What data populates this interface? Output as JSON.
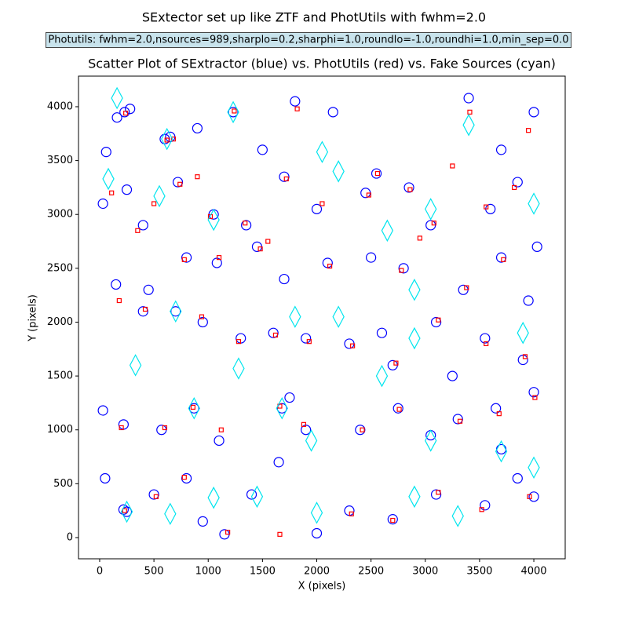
{
  "chart_data": {
    "type": "scatter",
    "title": "SExtector set up like ZTF and PhotUtils with fwhm=2.0",
    "annotation": "Photutils: fwhm=2.0,nsources=989,sharplo=0.2,sharphi=1.0,roundlo=-1.0,roundhi=1.0,min_sep=0.0",
    "subtitle": "Scatter Plot of SExtractor (blue) vs. PhotUtils (red) vs. Fake Sources (cyan)",
    "x_label": "X (pixels)",
    "y_label": "Y (pixels)",
    "xlim": [
      -195,
      4289
    ],
    "ylim": [
      -197,
      4284
    ],
    "xticks": [
      0,
      500,
      1000,
      1500,
      2000,
      2500,
      3000,
      3500,
      4000
    ],
    "yticks": [
      0,
      500,
      1000,
      1500,
      2000,
      2500,
      3000,
      3500,
      4000
    ],
    "grid": false,
    "series": [
      {
        "color": "#0000ff",
        "marker": "circle",
        "x": [
          230,
          280,
          160,
          600,
          650,
          1230,
          1800,
          2150,
          2550,
          3400,
          3700,
          4000,
          60,
          250,
          720,
          1050,
          1350,
          1700,
          2000,
          2450,
          2850,
          3050,
          3600,
          3850,
          30,
          400,
          800,
          1080,
          1450,
          1700,
          2100,
          2500,
          2800,
          3350,
          3700,
          4030,
          150,
          400,
          700,
          950,
          1300,
          1600,
          1900,
          2300,
          2700,
          3100,
          3550,
          3900,
          30,
          220,
          570,
          870,
          1100,
          1680,
          1900,
          2400,
          2750,
          3050,
          3300,
          3650,
          4000,
          50,
          250,
          220,
          500,
          800,
          950,
          1150,
          1400,
          1650,
          2000,
          2300,
          2700,
          3100,
          3550,
          4000,
          3850,
          3700,
          900,
          1500,
          2600,
          3250,
          3950,
          450,
          1750
        ],
        "values": [
          3950,
          3980,
          3900,
          3700,
          3720,
          3950,
          4050,
          3950,
          3380,
          4080,
          3600,
          3950,
          3580,
          3230,
          3300,
          3000,
          2900,
          3350,
          3050,
          3200,
          3250,
          2900,
          3050,
          3300,
          3100,
          2900,
          2600,
          2550,
          2700,
          2400,
          2550,
          2600,
          2500,
          2300,
          2600,
          2700,
          2350,
          2100,
          2100,
          2000,
          1850,
          1900,
          1850,
          1800,
          1600,
          2000,
          1850,
          1650,
          1180,
          1050,
          1000,
          1200,
          900,
          1200,
          1000,
          1000,
          1200,
          950,
          1100,
          1200,
          1350,
          550,
          240,
          260,
          400,
          550,
          150,
          30,
          400,
          700,
          40,
          250,
          170,
          400,
          300,
          380,
          550,
          820,
          3800,
          3600,
          1900,
          1500,
          2200,
          2300,
          1300
        ]
      },
      {
        "color": "#ff0000",
        "marker": "square",
        "x": [
          240,
          620,
          680,
          1240,
          1820,
          2560,
          3410,
          3950,
          110,
          500,
          740,
          1020,
          1340,
          1720,
          2050,
          2480,
          2860,
          3080,
          3560,
          3820,
          350,
          780,
          1100,
          1480,
          2120,
          2780,
          3380,
          3720,
          180,
          420,
          940,
          1280,
          1620,
          1930,
          2330,
          2730,
          3120,
          3560,
          3920,
          200,
          600,
          860,
          1120,
          1660,
          1880,
          2420,
          2760,
          3320,
          3680,
          4010,
          230,
          520,
          780,
          1180,
          1660,
          2320,
          2700,
          3120,
          3520,
          3960,
          2950,
          1550,
          900,
          3250
        ],
        "values": [
          3940,
          3690,
          3700,
          3960,
          3980,
          3380,
          3950,
          3780,
          3200,
          3100,
          3280,
          2980,
          2920,
          3330,
          3100,
          3180,
          3230,
          2920,
          3070,
          3250,
          2850,
          2580,
          2600,
          2680,
          2520,
          2480,
          2320,
          2580,
          2200,
          2120,
          2050,
          1820,
          1880,
          1820,
          1780,
          1620,
          2020,
          1800,
          1680,
          1020,
          1020,
          1210,
          1000,
          1220,
          1050,
          1000,
          1190,
          1080,
          1150,
          1300,
          250,
          380,
          560,
          50,
          30,
          220,
          160,
          420,
          260,
          380,
          2780,
          2750,
          3350,
          3450
        ]
      },
      {
        "color": "#00e5ee",
        "marker": "diamond",
        "x": [
          160,
          1230,
          620,
          2050,
          2200,
          3400,
          80,
          550,
          1050,
          2650,
          3050,
          4000,
          2900,
          700,
          1800,
          2200,
          2900,
          3900,
          330,
          1280,
          2600,
          870,
          1680,
          1950,
          3050,
          3700,
          250,
          650,
          1050,
          1450,
          2000,
          2900,
          3300,
          4000
        ],
        "values": [
          4080,
          3950,
          3700,
          3580,
          3400,
          3830,
          3330,
          3170,
          2950,
          2850,
          3050,
          3100,
          2300,
          2100,
          2050,
          2050,
          1850,
          1900,
          1600,
          1570,
          1500,
          1200,
          1200,
          900,
          900,
          800,
          240,
          220,
          370,
          380,
          230,
          380,
          200,
          650
        ]
      }
    ]
  }
}
